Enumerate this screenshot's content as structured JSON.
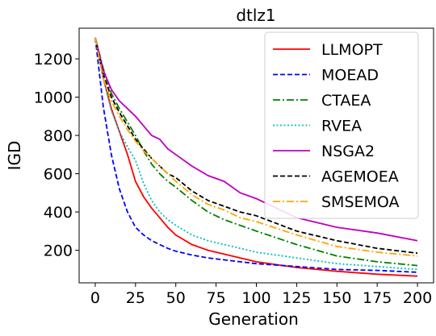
{
  "chart_data": {
    "type": "line",
    "title": "dtlz1",
    "xlabel": "Generation",
    "ylabel": "IGD",
    "xlim": [
      -10,
      210
    ],
    "ylim": [
      30,
      1360
    ],
    "xticks": [
      0,
      25,
      50,
      75,
      100,
      125,
      150,
      175,
      200
    ],
    "yticks": [
      200,
      400,
      600,
      800,
      1000,
      1200
    ],
    "grid": false,
    "legend_position": "top-right",
    "series": [
      {
        "name": "LLMOPT",
        "color": "#ff0000",
        "dash": "solid",
        "x": [
          0,
          5,
          10,
          15,
          20,
          25,
          30,
          35,
          40,
          45,
          50,
          60,
          70,
          80,
          90,
          100,
          125,
          150,
          175,
          200
        ],
        "y": [
          1310,
          1100,
          940,
          820,
          700,
          560,
          480,
          420,
          370,
          320,
          280,
          230,
          200,
          180,
          160,
          140,
          110,
          90,
          75,
          65
        ]
      },
      {
        "name": "MOEAD",
        "color": "#0000ff",
        "dash": "dashed",
        "x": [
          0,
          5,
          10,
          15,
          20,
          25,
          30,
          35,
          40,
          45,
          50,
          60,
          70,
          80,
          90,
          100,
          125,
          150,
          175,
          200
        ],
        "y": [
          1310,
          950,
          700,
          520,
          400,
          320,
          280,
          250,
          230,
          210,
          195,
          175,
          160,
          150,
          140,
          130,
          115,
          100,
          95,
          85
        ]
      },
      {
        "name": "CTAEA",
        "color": "#008000",
        "dash": "dashdot",
        "x": [
          0,
          5,
          10,
          15,
          20,
          25,
          30,
          35,
          40,
          45,
          50,
          60,
          70,
          80,
          90,
          100,
          125,
          150,
          175,
          200
        ],
        "y": [
          1310,
          1150,
          1020,
          940,
          870,
          800,
          720,
          650,
          600,
          560,
          530,
          460,
          400,
          360,
          330,
          300,
          230,
          170,
          140,
          120
        ]
      },
      {
        "name": "RVEA",
        "color": "#00bfbf",
        "dash": "dotted",
        "x": [
          0,
          5,
          10,
          15,
          20,
          25,
          30,
          35,
          40,
          45,
          50,
          60,
          70,
          80,
          90,
          100,
          125,
          150,
          175,
          200
        ],
        "y": [
          1310,
          1100,
          930,
          820,
          740,
          670,
          550,
          460,
          400,
          360,
          330,
          280,
          250,
          230,
          210,
          190,
          160,
          130,
          115,
          100
        ]
      },
      {
        "name": "NSGA2",
        "color": "#bf00bf",
        "dash": "solid",
        "x": [
          0,
          5,
          10,
          15,
          20,
          25,
          30,
          35,
          40,
          45,
          50,
          60,
          70,
          80,
          90,
          100,
          125,
          150,
          175,
          200
        ],
        "y": [
          1310,
          1140,
          1040,
          980,
          940,
          900,
          850,
          800,
          780,
          730,
          700,
          640,
          590,
          560,
          500,
          470,
          370,
          320,
          290,
          250
        ]
      },
      {
        "name": "AGEMOEA",
        "color": "#000000",
        "dash": "dashed",
        "x": [
          0,
          5,
          10,
          15,
          20,
          25,
          30,
          35,
          40,
          45,
          50,
          60,
          70,
          80,
          90,
          100,
          125,
          150,
          175,
          200
        ],
        "y": [
          1310,
          1120,
          1000,
          920,
          850,
          780,
          730,
          680,
          640,
          600,
          580,
          510,
          460,
          430,
          400,
          380,
          300,
          250,
          210,
          185
        ]
      },
      {
        "name": "SMSEMOA",
        "color": "#ffa500",
        "dash": "dashdot",
        "x": [
          0,
          5,
          10,
          15,
          20,
          25,
          30,
          35,
          40,
          45,
          50,
          60,
          70,
          80,
          90,
          100,
          125,
          150,
          175,
          200
        ],
        "y": [
          1310,
          1100,
          980,
          900,
          830,
          770,
          720,
          680,
          640,
          600,
          560,
          490,
          440,
          410,
          370,
          350,
          280,
          220,
          190,
          170
        ]
      }
    ]
  }
}
